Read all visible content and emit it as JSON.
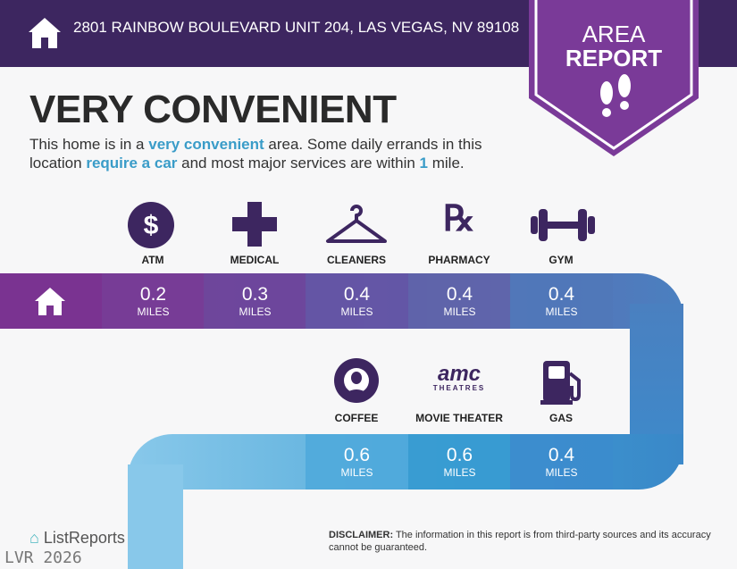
{
  "header": {
    "address": "2801 RAINBOW BOULEVARD UNIT 204, LAS VEGAS, NV 89108",
    "icon": "home-icon"
  },
  "badge": {
    "line1": "AREA",
    "line2": "REPORT",
    "icon": "footprints-icon"
  },
  "headline": "VERY CONVENIENT",
  "description": {
    "p1": "This home is in a ",
    "h1": "very convenient",
    "p2": " area. Some daily errands in this location ",
    "h2": "require a car",
    "p3": " and most major services are within ",
    "h3": "1",
    "p4": " mile."
  },
  "row1": [
    {
      "label": "ATM",
      "value": "0.2",
      "unit": "MILES",
      "icon": "dollar-icon"
    },
    {
      "label": "MEDICAL",
      "value": "0.3",
      "unit": "MILES",
      "icon": "medical-cross-icon"
    },
    {
      "label": "CLEANERS",
      "value": "0.4",
      "unit": "MILES",
      "icon": "hanger-icon"
    },
    {
      "label": "PHARMACY",
      "value": "0.4",
      "unit": "MILES",
      "icon": "rx-icon"
    },
    {
      "label": "GYM",
      "value": "0.4",
      "unit": "MILES",
      "icon": "dumbbell-icon"
    }
  ],
  "row2": [
    {
      "label": "COFFEE",
      "value": "0.6",
      "unit": "MILES",
      "icon": "starbucks-logo"
    },
    {
      "label": "MOVIE THEATER",
      "value": "0.6",
      "unit": "MILES",
      "icon": "amc-logo",
      "logo_text": "amc",
      "logo_sub": "THEATRES"
    },
    {
      "label": "GAS",
      "value": "0.4",
      "unit": "MILES",
      "icon": "gas-pump-icon"
    }
  ],
  "disclaimer": {
    "bold": "DISCLAIMER:",
    "text": " The information in this report is from third-party sources and its accuracy cannot be guaranteed."
  },
  "footer": {
    "brand": "ListReports",
    "watermark": "LVR 2026"
  },
  "colors": {
    "header": "#3d2660",
    "badge": "#7a3a98",
    "accent": "#3a9cc8"
  }
}
